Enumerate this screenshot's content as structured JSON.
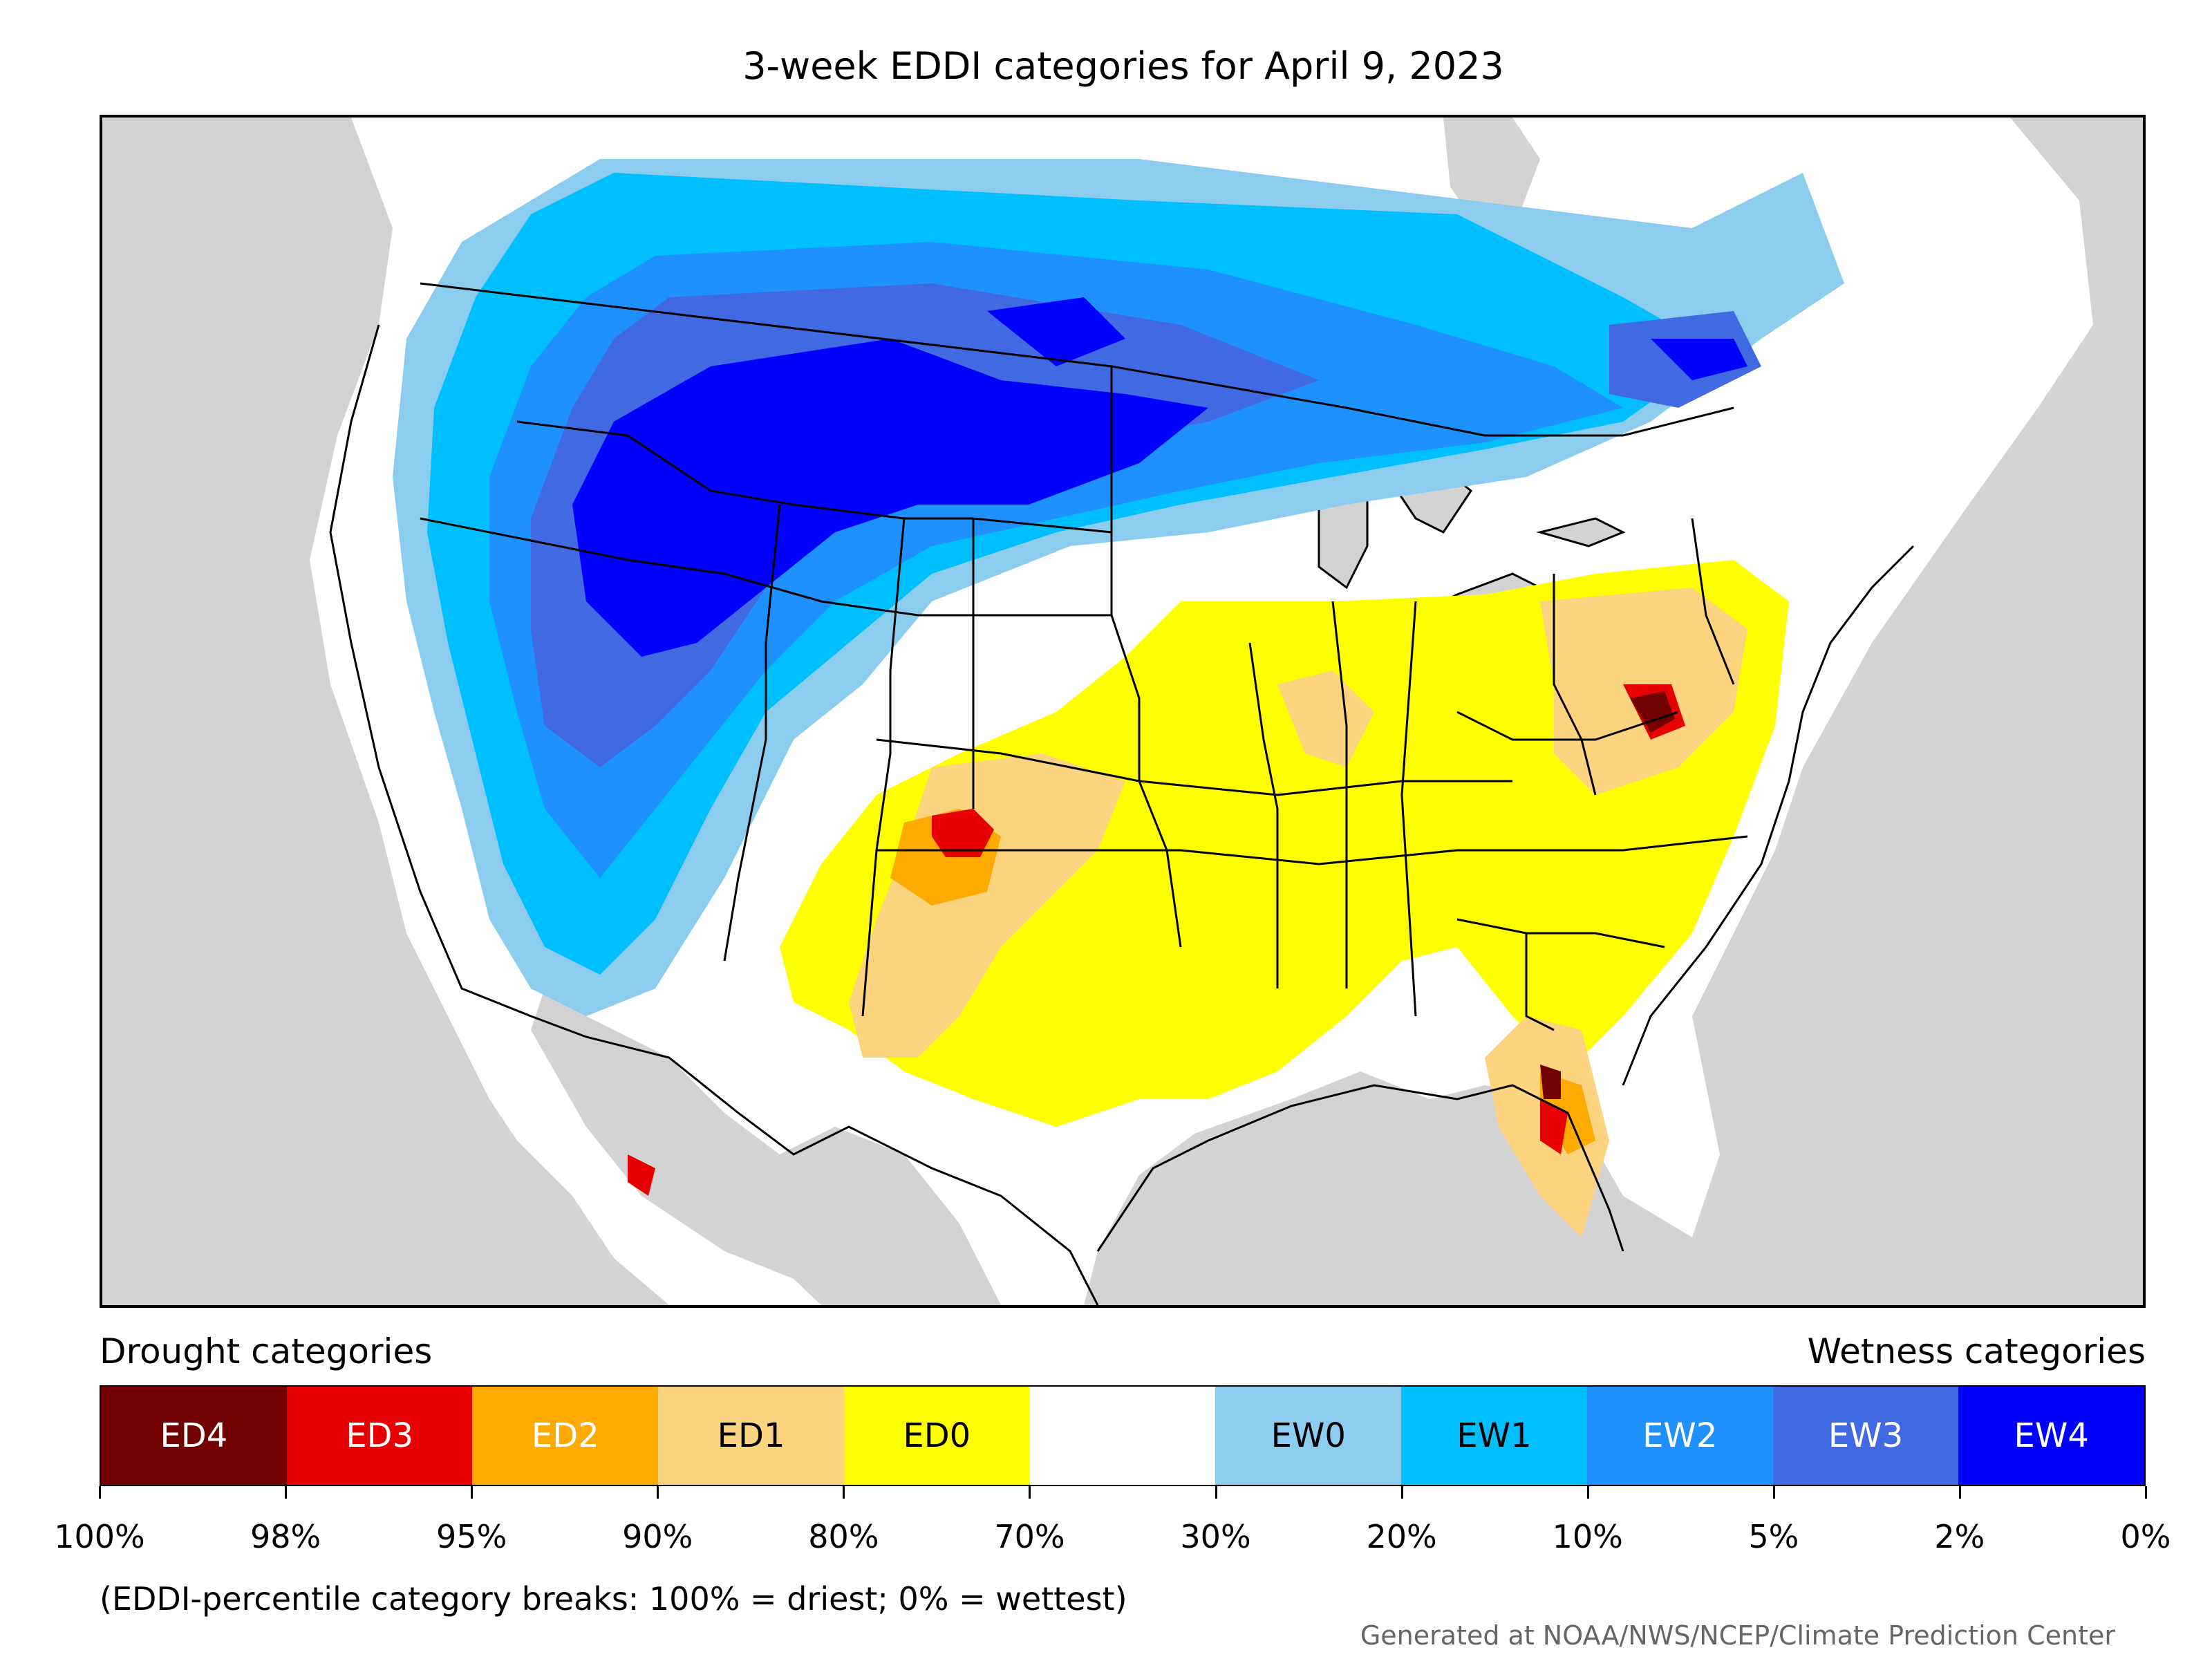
{
  "title": "3-week EDDI categories for April 9, 2023",
  "legend": {
    "drought_heading": "Drought categories",
    "wetness_heading": "Wetness categories",
    "categories": [
      {
        "label": "ED4",
        "color": "#730000",
        "text_color": "#ffffff"
      },
      {
        "label": "ED3",
        "color": "#e60000",
        "text_color": "#ffffff"
      },
      {
        "label": "ED2",
        "color": "#ffaa00",
        "text_color": "#ffffff"
      },
      {
        "label": "ED1",
        "color": "#fcd37f",
        "text_color": "#000000"
      },
      {
        "label": "ED0",
        "color": "#ffff00",
        "text_color": "#000000"
      },
      {
        "label": "",
        "color": "#ffffff",
        "text_color": "#000000"
      },
      {
        "label": "EW0",
        "color": "#8ccdef",
        "text_color": "#000000"
      },
      {
        "label": "EW1",
        "color": "#00bfff",
        "text_color": "#000000"
      },
      {
        "label": "EW2",
        "color": "#1e90ff",
        "text_color": "#ffffff"
      },
      {
        "label": "EW3",
        "color": "#4169e1",
        "text_color": "#ffffff"
      },
      {
        "label": "EW4",
        "color": "#0000ff",
        "text_color": "#ffffff"
      }
    ],
    "ticks": [
      "100%",
      "98%",
      "95%",
      "90%",
      "80%",
      "70%",
      "30%",
      "20%",
      "10%",
      "5%",
      "2%",
      "0%"
    ]
  },
  "note": "(EDDI-percentile category breaks: 100% = driest; 0% = wettest)",
  "credit": "Generated at NOAA/NWS/NCEP/Climate Prediction Center",
  "map": {
    "background_color": "#d3d3d3",
    "regions": [
      "west-wet",
      "north-plains-wet",
      "canada-wet",
      "central-dry",
      "southern-plains-dry",
      "mid-atlantic-dry",
      "florida-dry",
      "virginia-ed4",
      "florida-ed4",
      "oklahoma-ed3"
    ]
  }
}
